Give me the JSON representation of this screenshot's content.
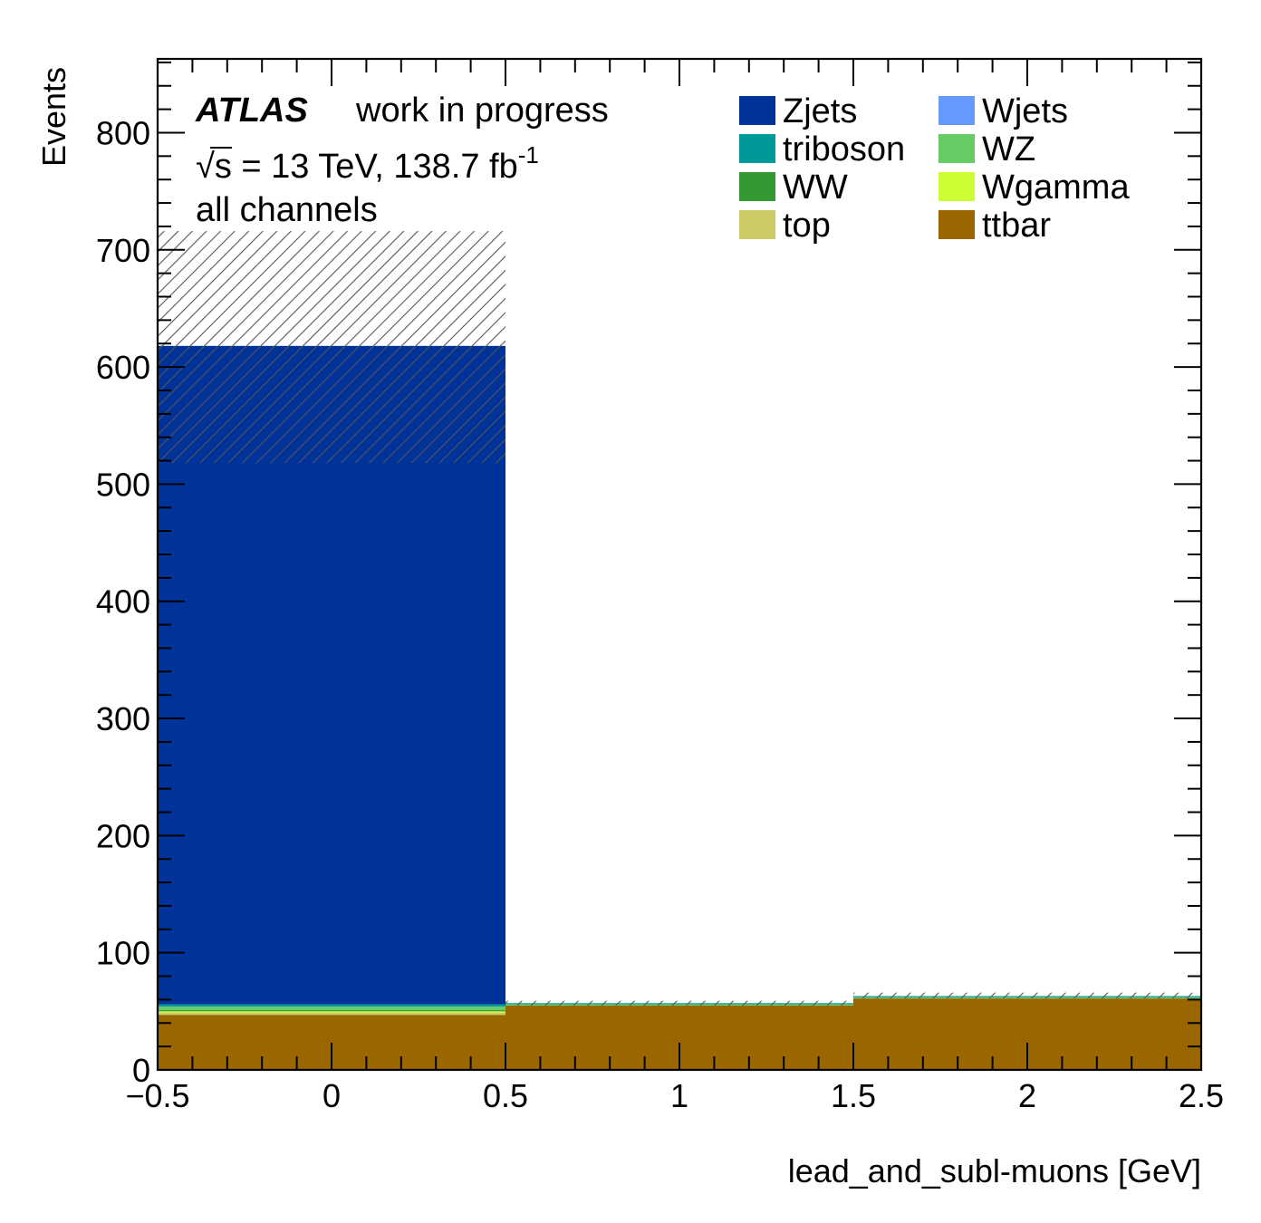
{
  "chart_data": {
    "type": "bar",
    "subtype": "stacked-histogram",
    "bin_edges": [
      -0.5,
      0.5,
      1.5,
      2.5
    ],
    "categories": [
      "-0.5–0.5",
      "0.5–1.5",
      "1.5–2.5"
    ],
    "xlabel": "lead_and_subl-muons [GeV]",
    "ylabel": "Events",
    "xlim": [
      -0.5,
      2.5
    ],
    "ylim": [
      0,
      863
    ],
    "xticks": [
      -0.5,
      0,
      0.5,
      1,
      1.5,
      2,
      2.5
    ],
    "xtick_labels": [
      "−0.5",
      "0",
      "0.5",
      "1",
      "1.5",
      "2",
      "2.5"
    ],
    "yticks": [
      0,
      100,
      200,
      300,
      400,
      500,
      600,
      700,
      800
    ],
    "ytick_labels": [
      "0",
      "100",
      "200",
      "300",
      "400",
      "500",
      "600",
      "700",
      "800"
    ],
    "atlas_label": "ATLAS",
    "status_label": "work in progress",
    "energy_label": {
      "sqrt": "√",
      "s_eq": "s = 13 TeV, 138.7 fb",
      "sup": "-1"
    },
    "channel_label": "all channels",
    "series": [
      {
        "name": "ttbar",
        "color": "#996600",
        "values": [
          47,
          55,
          61
        ]
      },
      {
        "name": "top",
        "color": "#cccc66",
        "values": [
          2,
          0,
          0
        ]
      },
      {
        "name": "Wgamma",
        "color": "#ccff33",
        "values": [
          1,
          0,
          0
        ]
      },
      {
        "name": "WW",
        "color": "#339933",
        "values": [
          1,
          0,
          0
        ]
      },
      {
        "name": "WZ",
        "color": "#66cc66",
        "values": [
          3,
          1,
          1
        ]
      },
      {
        "name": "triboson",
        "color": "#009999",
        "values": [
          2,
          1,
          1
        ]
      },
      {
        "name": "Wjets",
        "color": "#6699ff",
        "values": [
          0,
          0,
          0
        ]
      },
      {
        "name": "Zjets",
        "color": "#003399",
        "values": [
          562,
          0,
          0
        ]
      }
    ],
    "total_values": [
      618,
      57,
      63
    ],
    "uncertainty": [
      {
        "low": 518,
        "high": 716
      },
      {
        "low": 55,
        "high": 59
      },
      {
        "low": 61,
        "high": 66
      }
    ],
    "legend": {
      "position": "top-right",
      "order": [
        "Zjets",
        "Wjets",
        "triboson",
        "WZ",
        "WW",
        "Wgamma",
        "top",
        "ttbar"
      ]
    }
  }
}
